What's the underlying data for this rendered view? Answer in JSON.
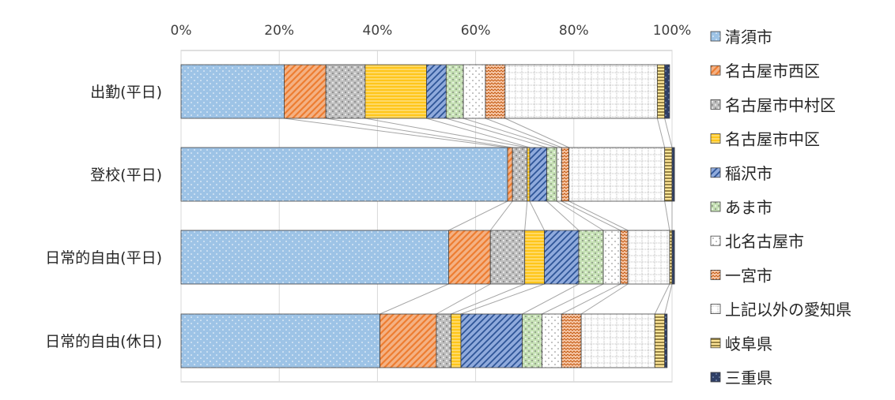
{
  "chart_data": {
    "type": "bar",
    "orientation": "horizontal",
    "stacked": "100%",
    "title": "",
    "xlabel": "",
    "ylabel": "",
    "xlim": [
      0,
      100
    ],
    "x_ticks": [
      "0%",
      "20%",
      "40%",
      "60%",
      "80%",
      "100%"
    ],
    "x_tick_values": [
      0,
      20,
      40,
      60,
      80,
      100
    ],
    "grid": "vertical",
    "legend_position": "right",
    "series_lines": true,
    "categories": [
      "出勤(平日)",
      "登校(平日)",
      "日常的自由(平日)",
      "日常的自由(休日)"
    ],
    "series": [
      {
        "name": "清須市",
        "values": [
          21,
          66.5,
          54.5,
          40.5
        ],
        "color": "#9dc3e6",
        "pattern": "dots"
      },
      {
        "name": "名古屋市西区",
        "values": [
          8.5,
          1.0,
          8.5,
          11.5
        ],
        "color": "#f4b183",
        "pattern": "diag-up"
      },
      {
        "name": "名古屋市中村区",
        "values": [
          8,
          3,
          7,
          3
        ],
        "color": "#bfbfbf",
        "pattern": "checker"
      },
      {
        "name": "名古屋市中区",
        "values": [
          12.5,
          0.5,
          4,
          2
        ],
        "color": "#ffd966",
        "pattern": "hlines"
      },
      {
        "name": "稲沢市",
        "values": [
          4,
          3.5,
          7,
          12.5
        ],
        "color": "#8faadc",
        "pattern": "diag-up-dark"
      },
      {
        "name": "あま市",
        "values": [
          3.5,
          2,
          5,
          4
        ],
        "color": "#c5e0b4",
        "pattern": "checker"
      },
      {
        "name": "北名古屋市",
        "values": [
          4.5,
          1,
          3.5,
          4
        ],
        "color": "#ffffff",
        "pattern": "dots-dark"
      },
      {
        "name": "一宮市",
        "values": [
          4,
          1.5,
          1.5,
          4
        ],
        "color": "#f8cbad",
        "pattern": "zigzag"
      },
      {
        "name": "上記以外の愛知県",
        "values": [
          31,
          19.5,
          8.5,
          15
        ],
        "color": "#ffffff",
        "pattern": "grid-dots"
      },
      {
        "name": "岐阜県",
        "values": [
          1.5,
          1.5,
          0.5,
          2
        ],
        "color": "#ffe699",
        "pattern": "hlines-dark"
      },
      {
        "name": "三重県",
        "values": [
          1,
          0.5,
          0.5,
          0.5
        ],
        "color": "#2f3f66",
        "pattern": "dots-light"
      }
    ]
  }
}
